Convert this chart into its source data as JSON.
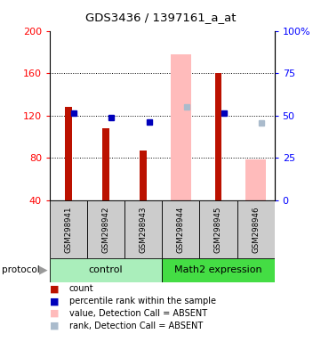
{
  "title": "GDS3436 / 1397161_a_at",
  "samples": [
    "GSM298941",
    "GSM298942",
    "GSM298943",
    "GSM298944",
    "GSM298945",
    "GSM298946"
  ],
  "red_bars": [
    128,
    108,
    87,
    null,
    160,
    null
  ],
  "pink_bars": [
    null,
    null,
    null,
    178,
    null,
    78
  ],
  "blue_squares": [
    122,
    118,
    114,
    null,
    122,
    null
  ],
  "light_blue_squares": [
    null,
    null,
    null,
    128,
    null,
    113
  ],
  "ylim_left": [
    40,
    200
  ],
  "ylim_right": [
    0,
    100
  ],
  "yticks_left": [
    40,
    80,
    120,
    160,
    200
  ],
  "yticks_right": [
    0,
    25,
    50,
    75,
    100
  ],
  "right_tick_labels": [
    "0",
    "25",
    "50",
    "75",
    "100%"
  ],
  "red_color": "#bb1100",
  "pink_color": "#ffbbbb",
  "blue_color": "#0000bb",
  "light_blue_color": "#aabbcc",
  "plot_bg": "#ffffff",
  "sample_bg": "#cccccc",
  "control_color": "#aaeebb",
  "math2_color": "#44dd44",
  "legend_items": [
    [
      "red",
      "count"
    ],
    [
      "blue",
      "percentile rank within the sample"
    ],
    [
      "pink",
      "value, Detection Call = ABSENT"
    ],
    [
      "lightblue",
      "rank, Detection Call = ABSENT"
    ]
  ]
}
